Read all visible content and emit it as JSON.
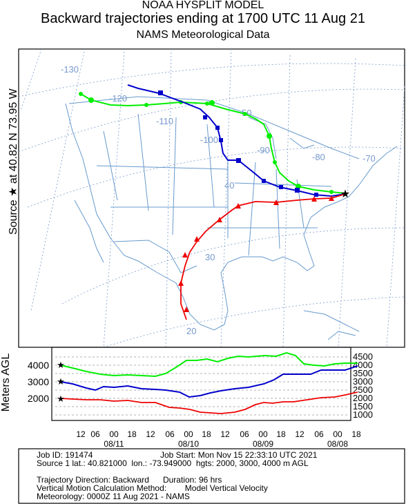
{
  "title": {
    "line1": "NOAA HYSPLIT MODEL",
    "line2": "Backward trajectories ending at 1700 UTC 11 Aug 21",
    "line3": "NAMS Meteorological Data"
  },
  "side_label": "Source ★ at 40.82 N 73.95 W",
  "profile_ylabel": "Meters AGL",
  "map": {
    "longitude_labels": [
      "-130",
      "-120",
      "-110",
      "-100",
      "-90",
      "-80",
      "-70"
    ],
    "latitude_labels": [
      "50",
      "40",
      "30",
      "20"
    ],
    "source_marker": "star-icon"
  },
  "profile": {
    "left_ticks": [
      "4000",
      "3000",
      "2000"
    ],
    "right_ticks": [
      "4500",
      "4000",
      "3500",
      "3000",
      "2500",
      "2000",
      "1500",
      "1000"
    ],
    "hour_labels": [
      "12",
      "06",
      "00",
      "18",
      "12",
      "06",
      "00",
      "18",
      "12",
      "06",
      "00",
      "18",
      "12",
      "06",
      "00",
      "18"
    ],
    "date_labels": [
      "08/11",
      "08/10",
      "08/09",
      "08/08"
    ]
  },
  "info": {
    "job_id": "Job ID: 191474",
    "job_start": "Job Start: Mon Nov 15 22:33:10 UTC 2021",
    "source": "Source 1 lat.: 40.821000  lon.: -73.949000  hgts: 2000, 3000, 4000 m AGL",
    "direction": "Trajectory Direction: Backward      Duration: 96 hrs",
    "vertical": "Vertical Motion Calculation Method:        Model Vertical Velocity",
    "meteorology": "Meteorology: 0000Z 11 Aug 2021 - NAMS"
  },
  "trajectories": [
    {
      "height": "4000",
      "color": "#00ee00",
      "marker": "circle"
    },
    {
      "height": "3000",
      "color": "#0000cc",
      "marker": "square"
    },
    {
      "height": "2000",
      "color": "#ee0000",
      "marker": "triangle"
    }
  ]
}
